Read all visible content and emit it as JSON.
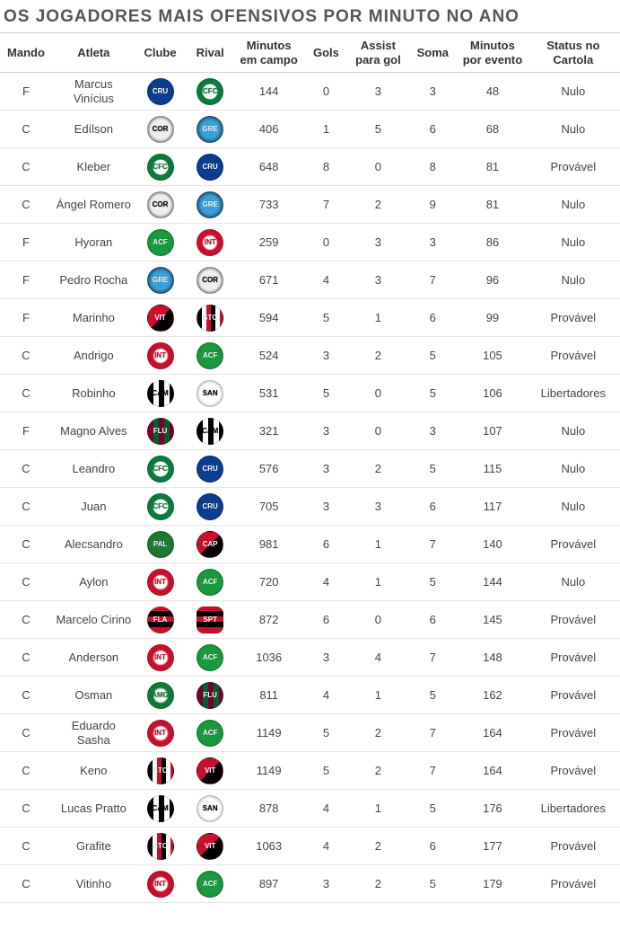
{
  "title": "OS JOGADORES MAIS OFENSIVOS POR MINUTO NO ANO",
  "columns": [
    "Mando",
    "Atleta",
    "Clube",
    "Rival",
    "Minutos em campo",
    "Gols",
    "Assist para gol",
    "Soma",
    "Minutos por evento",
    "Status no Cartola"
  ],
  "clubs": {
    "cruzeiro": {
      "label": "CRU",
      "class": "cruzeiro"
    },
    "coritiba": {
      "label": "CFC",
      "class": "coritiba"
    },
    "corinthians": {
      "label": "COR",
      "class": "corinthians"
    },
    "gremio": {
      "label": "GRE",
      "class": "gremio"
    },
    "chapecoense": {
      "label": "ACF",
      "class": "chapecoense"
    },
    "internacional": {
      "label": "INT",
      "class": "internacional"
    },
    "vitoria": {
      "label": "VIT",
      "class": "vitoria"
    },
    "santacruz": {
      "label": "STC",
      "class": "santacruz"
    },
    "atleticomg": {
      "label": "CAM",
      "class": "atleticomg"
    },
    "santos": {
      "label": "SAN",
      "class": "santos"
    },
    "fluminense": {
      "label": "FLU",
      "class": "fluminense"
    },
    "palmeiras": {
      "label": "PAL",
      "class": "palmeiras"
    },
    "atleticopr": {
      "label": "CAP",
      "class": "atleticopr"
    },
    "flamengo": {
      "label": "FLA",
      "class": "flamengo"
    },
    "sport": {
      "label": "SPT",
      "class": "sport"
    },
    "americamg": {
      "label": "AMG",
      "class": "americamg"
    }
  },
  "rows": [
    {
      "mando": "F",
      "atleta": "Marcus Vinícius",
      "clube": "cruzeiro",
      "rival": "coritiba",
      "min": 144,
      "gols": 0,
      "ass": 3,
      "soma": 3,
      "mpe": 48,
      "status": "Nulo"
    },
    {
      "mando": "C",
      "atleta": "Edílson",
      "clube": "corinthians",
      "rival": "gremio",
      "min": 406,
      "gols": 1,
      "ass": 5,
      "soma": 6,
      "mpe": 68,
      "status": "Nulo"
    },
    {
      "mando": "C",
      "atleta": "Kleber",
      "clube": "coritiba",
      "rival": "cruzeiro",
      "min": 648,
      "gols": 8,
      "ass": 0,
      "soma": 8,
      "mpe": 81,
      "status": "Provável"
    },
    {
      "mando": "C",
      "atleta": "Ángel Romero",
      "clube": "corinthians",
      "rival": "gremio",
      "min": 733,
      "gols": 7,
      "ass": 2,
      "soma": 9,
      "mpe": 81,
      "status": "Nulo"
    },
    {
      "mando": "F",
      "atleta": "Hyoran",
      "clube": "chapecoense",
      "rival": "internacional",
      "min": 259,
      "gols": 0,
      "ass": 3,
      "soma": 3,
      "mpe": 86,
      "status": "Nulo"
    },
    {
      "mando": "F",
      "atleta": "Pedro Rocha",
      "clube": "gremio",
      "rival": "corinthians",
      "min": 671,
      "gols": 4,
      "ass": 3,
      "soma": 7,
      "mpe": 96,
      "status": "Nulo"
    },
    {
      "mando": "F",
      "atleta": "Marinho",
      "clube": "vitoria",
      "rival": "santacruz",
      "min": 594,
      "gols": 5,
      "ass": 1,
      "soma": 6,
      "mpe": 99,
      "status": "Provável"
    },
    {
      "mando": "C",
      "atleta": "Andrigo",
      "clube": "internacional",
      "rival": "chapecoense",
      "min": 524,
      "gols": 3,
      "ass": 2,
      "soma": 5,
      "mpe": 105,
      "status": "Provável"
    },
    {
      "mando": "C",
      "atleta": "Robinho",
      "clube": "atleticomg",
      "rival": "santos",
      "min": 531,
      "gols": 5,
      "ass": 0,
      "soma": 5,
      "mpe": 106,
      "status": "Libertadores"
    },
    {
      "mando": "F",
      "atleta": "Magno Alves",
      "clube": "fluminense",
      "rival": "atleticomg",
      "min": 321,
      "gols": 3,
      "ass": 0,
      "soma": 3,
      "mpe": 107,
      "status": "Nulo"
    },
    {
      "mando": "C",
      "atleta": "Leandro",
      "clube": "coritiba",
      "rival": "cruzeiro",
      "min": 576,
      "gols": 3,
      "ass": 2,
      "soma": 5,
      "mpe": 115,
      "status": "Nulo"
    },
    {
      "mando": "C",
      "atleta": "Juan",
      "clube": "coritiba",
      "rival": "cruzeiro",
      "min": 705,
      "gols": 3,
      "ass": 3,
      "soma": 6,
      "mpe": 117,
      "status": "Nulo"
    },
    {
      "mando": "C",
      "atleta": "Alecsandro",
      "clube": "palmeiras",
      "rival": "atleticopr",
      "min": 981,
      "gols": 6,
      "ass": 1,
      "soma": 7,
      "mpe": 140,
      "status": "Provável"
    },
    {
      "mando": "C",
      "atleta": "Aylon",
      "clube": "internacional",
      "rival": "chapecoense",
      "min": 720,
      "gols": 4,
      "ass": 1,
      "soma": 5,
      "mpe": 144,
      "status": "Nulo"
    },
    {
      "mando": "C",
      "atleta": "Marcelo Cirino",
      "clube": "flamengo",
      "rival": "sport",
      "min": 872,
      "gols": 6,
      "ass": 0,
      "soma": 6,
      "mpe": 145,
      "status": "Provável"
    },
    {
      "mando": "C",
      "atleta": "Anderson",
      "clube": "internacional",
      "rival": "chapecoense",
      "min": 1036,
      "gols": 3,
      "ass": 4,
      "soma": 7,
      "mpe": 148,
      "status": "Provável"
    },
    {
      "mando": "C",
      "atleta": "Osman",
      "clube": "americamg",
      "rival": "fluminense",
      "min": 811,
      "gols": 4,
      "ass": 1,
      "soma": 5,
      "mpe": 162,
      "status": "Provável"
    },
    {
      "mando": "C",
      "atleta": "Eduardo Sasha",
      "clube": "internacional",
      "rival": "chapecoense",
      "min": 1149,
      "gols": 5,
      "ass": 2,
      "soma": 7,
      "mpe": 164,
      "status": "Provável"
    },
    {
      "mando": "C",
      "atleta": "Keno",
      "clube": "santacruz",
      "rival": "vitoria",
      "min": 1149,
      "gols": 5,
      "ass": 2,
      "soma": 7,
      "mpe": 164,
      "status": "Provável"
    },
    {
      "mando": "C",
      "atleta": "Lucas Pratto",
      "clube": "atleticomg",
      "rival": "santos",
      "min": 878,
      "gols": 4,
      "ass": 1,
      "soma": 5,
      "mpe": 176,
      "status": "Libertadores"
    },
    {
      "mando": "C",
      "atleta": "Grafite",
      "clube": "santacruz",
      "rival": "vitoria",
      "min": 1063,
      "gols": 4,
      "ass": 2,
      "soma": 6,
      "mpe": 177,
      "status": "Provável"
    },
    {
      "mando": "C",
      "atleta": "Vitinho",
      "clube": "internacional",
      "rival": "chapecoense",
      "min": 897,
      "gols": 3,
      "ass": 2,
      "soma": 5,
      "mpe": 179,
      "status": "Provável"
    }
  ]
}
